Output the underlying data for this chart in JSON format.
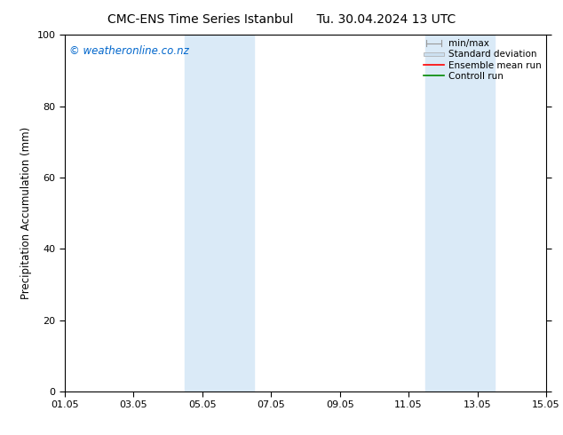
{
  "title_left": "CMC-ENS Time Series Istanbul",
  "title_right": "Tu. 30.04.2024 13 UTC",
  "ylabel": "Precipitation Accumulation (mm)",
  "xlabel": "",
  "ylim": [
    0,
    100
  ],
  "xlim": [
    0,
    14
  ],
  "xtick_labels": [
    "01.05",
    "03.05",
    "05.05",
    "07.05",
    "09.05",
    "11.05",
    "13.05",
    "15.05"
  ],
  "xtick_positions": [
    0,
    2,
    4,
    6,
    8,
    10,
    12,
    14
  ],
  "ytick_labels": [
    "0",
    "20",
    "40",
    "60",
    "80",
    "100"
  ],
  "ytick_positions": [
    0,
    20,
    40,
    60,
    80,
    100
  ],
  "shaded_bands": [
    {
      "x_start": 3.5,
      "x_end": 5.5
    },
    {
      "x_start": 10.5,
      "x_end": 12.5
    }
  ],
  "shaded_color": "#daeaf7",
  "background_color": "#ffffff",
  "watermark_text": "© weatheronline.co.nz",
  "watermark_color": "#0066cc",
  "legend_items": [
    {
      "label": "min/max",
      "color": "#999999",
      "type": "minmax"
    },
    {
      "label": "Standard deviation",
      "color": "#ccddee",
      "type": "band"
    },
    {
      "label": "Ensemble mean run",
      "color": "#ff0000",
      "type": "line"
    },
    {
      "label": "Controll run",
      "color": "#008800",
      "type": "line"
    }
  ],
  "title_fontsize": 10,
  "axis_fontsize": 8.5,
  "tick_fontsize": 8,
  "watermark_fontsize": 8.5,
  "legend_fontsize": 7.5
}
